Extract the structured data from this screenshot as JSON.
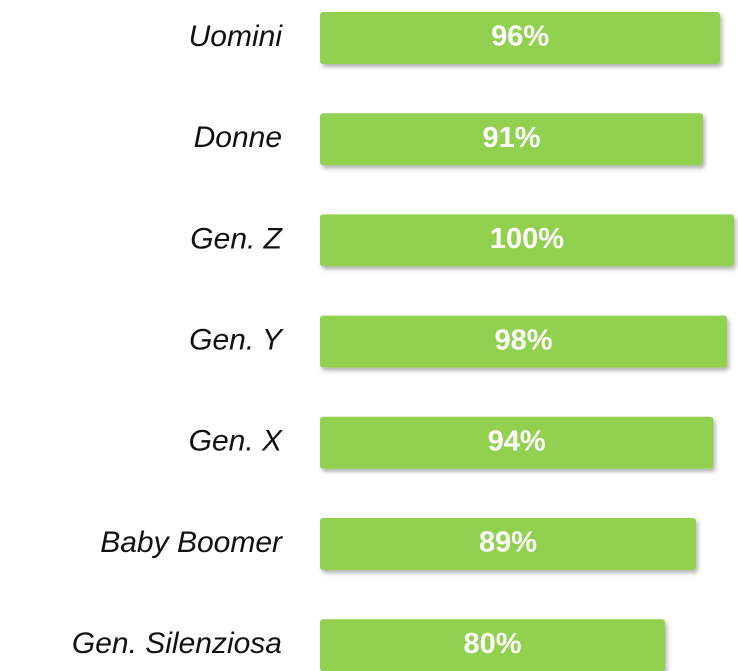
{
  "chart_data": {
    "type": "barh",
    "categories": [
      "Uomini",
      "Donne",
      "Gen. Z",
      "Gen. Y",
      "Gen. X",
      "Baby Boomer",
      "Gen. Silenziosa"
    ],
    "values": [
      96,
      91,
      100,
      98,
      94,
      89,
      80
    ],
    "value_labels": [
      "96%",
      "91%",
      "100%",
      "98%",
      "94%",
      "89%",
      "80%"
    ],
    "color": "#92d050",
    "xlim": [
      -20,
      100
    ]
  }
}
